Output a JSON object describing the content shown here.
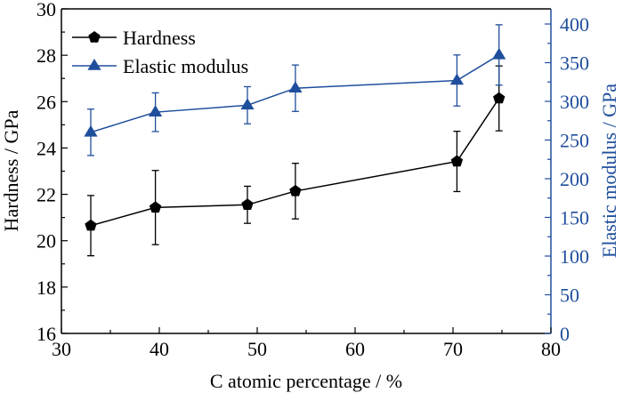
{
  "chart_data": {
    "type": "line",
    "title": "",
    "xlabel": "C atomic percentage / %",
    "ylabel": "Hardness / GPa",
    "y2label": "Elastic modulus / GPa",
    "xlim": [
      30,
      80
    ],
    "ylim": [
      16,
      30
    ],
    "y2lim": [
      0,
      400
    ],
    "xticks": [
      "30",
      "40",
      "50",
      "60",
      "70",
      "80"
    ],
    "yticks": [
      "16",
      "18",
      "20",
      "22",
      "24",
      "26",
      "28",
      "30"
    ],
    "y2ticks": [
      "0",
      "50",
      "100",
      "150",
      "200",
      "250",
      "300",
      "350",
      "400"
    ],
    "grid": false,
    "legend_position": "top-left",
    "x": [
      33.0,
      39.6,
      49.0,
      53.9,
      70.4,
      74.7
    ],
    "series": [
      {
        "name": "Hardness",
        "axis": "left",
        "marker": "pentagon",
        "color": "#000000",
        "values": [
          20.65,
          21.43,
          21.55,
          22.14,
          23.42,
          26.14
        ],
        "errors": [
          1.3,
          1.6,
          0.8,
          1.2,
          1.3,
          1.4
        ]
      },
      {
        "name": "Elastic modulus",
        "axis": "right",
        "marker": "triangle",
        "color": "#1f4e9c",
        "values": [
          260,
          286,
          295,
          317,
          327,
          360
        ],
        "errors": [
          30,
          25,
          24,
          30,
          33,
          39
        ]
      }
    ]
  }
}
